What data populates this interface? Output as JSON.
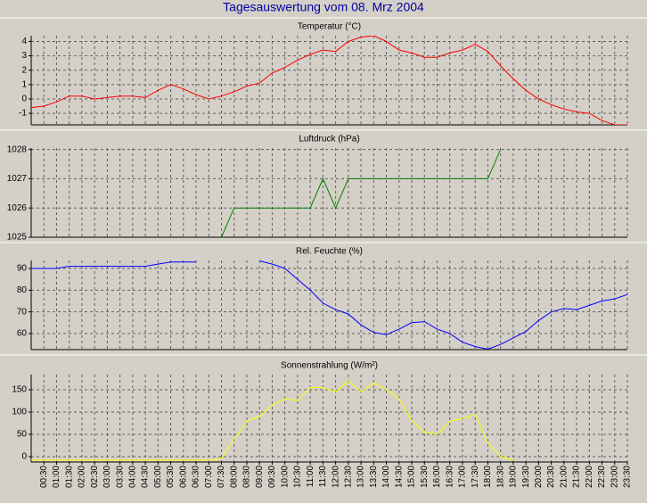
{
  "title": "Tagesauswertung vom 08. Mrz 2004",
  "chart_data": [
    {
      "type": "line",
      "title": "Temperatur (°C)",
      "color": "#ff0000",
      "values": [
        -0.6,
        -0.5,
        -0.2,
        0.2,
        0.2,
        0.0,
        0.1,
        0.2,
        0.2,
        0.1,
        0.6,
        1.0,
        0.7,
        0.3,
        0.0,
        0.2,
        0.5,
        0.9,
        1.1,
        1.8,
        2.2,
        2.7,
        3.1,
        3.4,
        3.3,
        4.0,
        4.3,
        4.4,
        4.0,
        3.4,
        3.2,
        2.9,
        2.9,
        3.2,
        3.4,
        3.8,
        3.3,
        2.3,
        1.4,
        0.6,
        0.0,
        -0.4,
        -0.7,
        -0.9,
        -1.0,
        -1.5,
        -1.8,
        -1.8
      ],
      "ylim": [
        -1.8,
        4.4
      ],
      "yticks": [
        -1,
        0,
        1,
        2,
        3,
        4
      ],
      "grid": true
    },
    {
      "type": "line",
      "title": "Luftdruck (hPa)",
      "color": "#008000",
      "values": [
        null,
        null,
        null,
        null,
        null,
        null,
        null,
        null,
        null,
        null,
        null,
        null,
        null,
        null,
        null,
        1025,
        1026,
        1026,
        1026,
        1026,
        1026,
        1026,
        1026,
        1027,
        1026,
        1027,
        1027,
        1027,
        1027,
        1027,
        1027,
        1027,
        1027,
        1027,
        1027,
        1027,
        1027,
        1028,
        null,
        null,
        null,
        null,
        null,
        null,
        null,
        null,
        null,
        null
      ],
      "ylim": [
        1025,
        1028.05
      ],
      "yticks": [
        1025,
        1026,
        1027,
        1028
      ],
      "grid": true
    },
    {
      "type": "line",
      "title": "Rel. Feuchte (%)",
      "color": "#0000ff",
      "values": [
        90,
        90,
        90,
        91,
        91,
        91,
        91,
        91,
        91,
        91,
        92,
        93,
        93,
        93,
        null,
        null,
        null,
        null,
        93.5,
        92,
        90,
        85,
        80,
        74,
        71,
        69,
        64,
        60.5,
        59.5,
        62,
        65,
        65.5,
        62,
        60,
        56,
        54,
        52.8,
        55,
        58,
        61,
        66,
        70,
        71.5,
        71,
        73,
        75,
        76,
        78
      ],
      "ylim": [
        52.6,
        93.7
      ],
      "yticks": [
        60,
        70,
        80,
        90
      ],
      "grid": true
    },
    {
      "type": "line",
      "title": "Sonnenstrahlung (W/m²)",
      "color": "#ffff00",
      "values": [
        -8,
        -8,
        -8,
        -8,
        -8,
        -8,
        -8,
        -8,
        -8,
        -8,
        -8,
        -8,
        -8,
        -8,
        -8,
        -5,
        40,
        80,
        90,
        115,
        130,
        125,
        155,
        155,
        145,
        170,
        145,
        165,
        150,
        130,
        80,
        55,
        50,
        80,
        85,
        95,
        30,
        0,
        -8,
        null,
        null,
        null,
        null,
        null,
        null,
        null,
        null,
        null
      ],
      "ylim": [
        -12,
        184
      ],
      "yticks": [
        0,
        50,
        100,
        150
      ],
      "grid": true,
      "categories": [
        null,
        "00:30",
        "01:00",
        "01:30",
        "02:00",
        "02:30",
        "03:00",
        "03:30",
        "04:00",
        "04:30",
        "05:00",
        "05:30",
        "06:00",
        "06:30",
        "07:00",
        "07:30",
        "08:00",
        "08:30",
        "09:00",
        "09:30",
        "10:00",
        "10:30",
        "11:00",
        "11:30",
        "12:00",
        "12:30",
        "13:00",
        "13:30",
        "14:00",
        "14:30",
        "15:00",
        "15:30",
        "16:00",
        "16:30",
        "17:00",
        "17:30",
        "18:00",
        "18:30",
        "19:00",
        "19:30",
        "20:00",
        "20:30",
        "21:00",
        "21:30",
        "22:00",
        "22:30",
        "23:00",
        "23:30"
      ]
    }
  ]
}
